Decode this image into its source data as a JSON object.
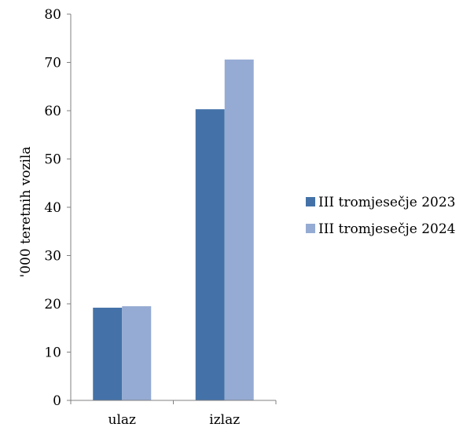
{
  "chart_data": {
    "type": "bar",
    "title": "",
    "xlabel": "",
    "ylabel": "'000 teretnih vozila",
    "ylim": [
      0,
      80
    ],
    "yticks": [
      0,
      10,
      20,
      30,
      40,
      50,
      60,
      70,
      80
    ],
    "categories": [
      "ulaz",
      "izlaz"
    ],
    "series": [
      {
        "name": "III tromjesečje 2023",
        "values": [
          19.2,
          60.3
        ],
        "color": "#4472a8"
      },
      {
        "name": "III tromjesečje 2024",
        "values": [
          19.5,
          70.6
        ],
        "color": "#95abd3"
      }
    ],
    "grid": false,
    "legend_position": "right"
  }
}
